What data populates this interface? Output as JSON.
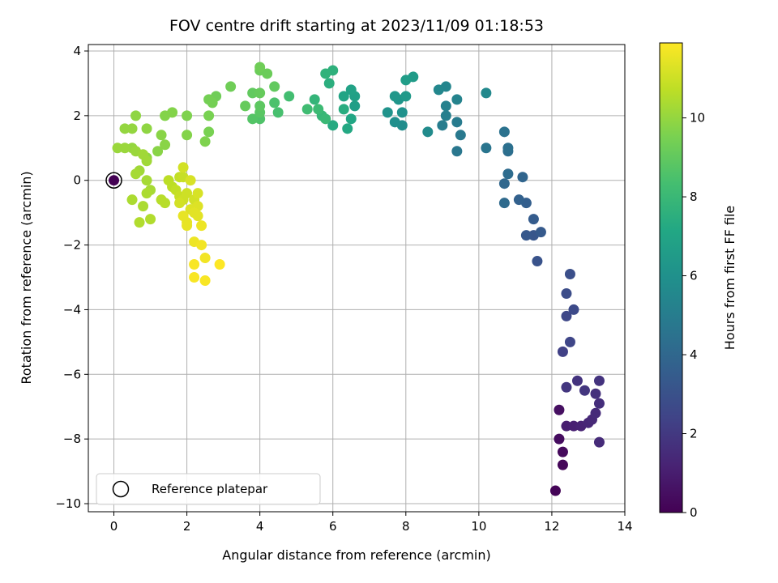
{
  "chart_data": {
    "type": "scatter",
    "title": "FOV centre drift starting at 2023/11/09 01:18:53",
    "xlabel": "Angular distance from reference (arcmin)",
    "ylabel": "Rotation from reference (arcmin)",
    "colorbar_label": "Hours from first FF file",
    "xlim": [
      -0.7,
      14
    ],
    "ylim": [
      -10.25,
      4.2
    ],
    "xticks": [
      0,
      2,
      4,
      6,
      8,
      10,
      12,
      14
    ],
    "yticks": [
      4,
      2,
      0,
      -2,
      -4,
      -6,
      -8,
      -10
    ],
    "colorbar_range": [
      0,
      11.9
    ],
    "colorbar_ticks": [
      0,
      2,
      4,
      6,
      8,
      10
    ],
    "colormap": "viridis",
    "grid": true,
    "legend": {
      "placement": "lower-left",
      "label": "Reference platepar"
    },
    "reference_point": {
      "x": 0,
      "y": 0,
      "hours": 0
    },
    "points": [
      [
        12.1,
        -9.6,
        0.1
      ],
      [
        12.3,
        -8.8,
        0.2
      ],
      [
        12.3,
        -8.4,
        0.3
      ],
      [
        12.2,
        -8.0,
        0.4
      ],
      [
        12.2,
        -7.1,
        0.5
      ],
      [
        12.4,
        -7.6,
        1.0
      ],
      [
        12.6,
        -7.6,
        1.1
      ],
      [
        12.8,
        -7.6,
        1.2
      ],
      [
        13.0,
        -7.5,
        1.3
      ],
      [
        13.1,
        -7.4,
        1.4
      ],
      [
        13.2,
        -7.2,
        1.5
      ],
      [
        13.3,
        -6.9,
        1.6
      ],
      [
        13.2,
        -6.6,
        1.7
      ],
      [
        13.3,
        -6.2,
        1.8
      ],
      [
        12.9,
        -6.5,
        1.9
      ],
      [
        12.7,
        -6.2,
        1.8
      ],
      [
        12.4,
        -6.4,
        1.9
      ],
      [
        13.3,
        -8.1,
        1.5
      ],
      [
        12.3,
        -5.3,
        2.3
      ],
      [
        12.5,
        -5.0,
        2.5
      ],
      [
        12.4,
        -4.2,
        2.6
      ],
      [
        12.6,
        -4.0,
        2.7
      ],
      [
        12.4,
        -3.5,
        2.8
      ],
      [
        12.5,
        -2.9,
        2.9
      ],
      [
        11.6,
        -2.5,
        3.1
      ],
      [
        11.5,
        -1.7,
        3.2
      ],
      [
        11.3,
        -1.7,
        3.3
      ],
      [
        11.7,
        -1.6,
        3.4
      ],
      [
        11.5,
        -1.2,
        3.5
      ],
      [
        11.3,
        -0.7,
        3.6
      ],
      [
        11.1,
        -0.6,
        3.7
      ],
      [
        11.2,
        0.1,
        3.9
      ],
      [
        10.7,
        -0.1,
        4.0
      ],
      [
        10.7,
        -0.7,
        4.1
      ],
      [
        10.8,
        0.2,
        4.2
      ],
      [
        10.8,
        0.9,
        4.3
      ],
      [
        10.8,
        1.0,
        4.4
      ],
      [
        10.7,
        1.5,
        4.5
      ],
      [
        10.2,
        1.0,
        4.6
      ],
      [
        9.4,
        0.9,
        4.7
      ],
      [
        9.5,
        1.4,
        4.8
      ],
      [
        9.4,
        1.8,
        4.9
      ],
      [
        9.0,
        1.7,
        5.0
      ],
      [
        9.1,
        2.0,
        5.1
      ],
      [
        9.1,
        2.3,
        5.2
      ],
      [
        9.4,
        2.5,
        5.3
      ],
      [
        9.1,
        2.9,
        5.4
      ],
      [
        8.9,
        2.8,
        5.5
      ],
      [
        10.2,
        2.7,
        5.6
      ],
      [
        8.6,
        1.5,
        5.7
      ],
      [
        7.9,
        1.7,
        5.8
      ],
      [
        7.7,
        1.8,
        5.9
      ],
      [
        7.9,
        2.1,
        6.0
      ],
      [
        7.5,
        2.1,
        6.1
      ],
      [
        7.8,
        2.5,
        6.2
      ],
      [
        7.7,
        2.6,
        6.3
      ],
      [
        8.0,
        2.6,
        6.4
      ],
      [
        8.2,
        3.2,
        6.5
      ],
      [
        8.0,
        3.1,
        6.6
      ],
      [
        6.6,
        2.3,
        6.7
      ],
      [
        6.6,
        2.6,
        6.8
      ],
      [
        6.5,
        2.8,
        6.9
      ],
      [
        6.3,
        2.6,
        7.0
      ],
      [
        6.5,
        1.9,
        7.1
      ],
      [
        6.4,
        1.6,
        7.2
      ],
      [
        6.0,
        1.7,
        7.3
      ],
      [
        6.3,
        2.2,
        7.4
      ],
      [
        5.9,
        3.0,
        7.5
      ],
      [
        6.0,
        3.4,
        7.6
      ],
      [
        5.8,
        3.3,
        7.7
      ],
      [
        5.5,
        2.5,
        7.8
      ],
      [
        5.7,
        2.0,
        7.9
      ],
      [
        5.8,
        1.9,
        8.0
      ],
      [
        5.6,
        2.2,
        8.1
      ],
      [
        5.3,
        2.2,
        8.2
      ],
      [
        4.8,
        2.6,
        8.3
      ],
      [
        4.5,
        2.1,
        8.4
      ],
      [
        4.4,
        2.4,
        8.5
      ],
      [
        4.0,
        1.9,
        8.6
      ],
      [
        3.8,
        1.9,
        8.7
      ],
      [
        4.0,
        2.1,
        8.8
      ],
      [
        4.0,
        2.3,
        8.9
      ],
      [
        3.8,
        2.7,
        9.0
      ],
      [
        4.4,
        2.9,
        9.0
      ],
      [
        4.0,
        2.7,
        9.1
      ],
      [
        3.6,
        2.3,
        9.1
      ],
      [
        4.0,
        3.4,
        9.2
      ],
      [
        4.2,
        3.3,
        9.2
      ],
      [
        4.0,
        3.5,
        9.3
      ],
      [
        3.2,
        2.9,
        9.3
      ],
      [
        2.8,
        2.6,
        9.3
      ],
      [
        2.6,
        2.5,
        9.4
      ],
      [
        2.7,
        2.4,
        9.4
      ],
      [
        2.6,
        2.0,
        9.5
      ],
      [
        2.6,
        1.5,
        9.5
      ],
      [
        2.5,
        1.2,
        9.6
      ],
      [
        2.0,
        2.0,
        9.6
      ],
      [
        2.0,
        1.4,
        9.7
      ],
      [
        1.6,
        2.1,
        9.7
      ],
      [
        1.4,
        2.0,
        9.7
      ],
      [
        1.3,
        1.4,
        9.8
      ],
      [
        1.4,
        1.1,
        9.8
      ],
      [
        1.2,
        0.9,
        9.8
      ],
      [
        0.9,
        0.7,
        9.9
      ],
      [
        0.9,
        1.6,
        9.9
      ],
      [
        0.6,
        2.0,
        9.9
      ],
      [
        0.5,
        1.6,
        10.0
      ],
      [
        0.3,
        1.6,
        10.0
      ],
      [
        0.5,
        1.0,
        10.0
      ],
      [
        0.3,
        1.0,
        10.1
      ],
      [
        0.1,
        1.0,
        10.1
      ],
      [
        0.6,
        0.9,
        10.1
      ],
      [
        0.8,
        0.8,
        10.2
      ],
      [
        0.9,
        0.6,
        10.2
      ],
      [
        0.7,
        0.3,
        10.2
      ],
      [
        0.6,
        0.2,
        10.3
      ],
      [
        0.9,
        0.0,
        10.3
      ],
      [
        1.0,
        -0.3,
        10.3
      ],
      [
        0.9,
        -0.4,
        10.4
      ],
      [
        0.5,
        -0.6,
        10.4
      ],
      [
        0.8,
        -0.8,
        10.4
      ],
      [
        0.7,
        -1.3,
        10.5
      ],
      [
        1.0,
        -1.2,
        10.5
      ],
      [
        1.3,
        -0.6,
        10.6
      ],
      [
        1.4,
        -0.7,
        10.6
      ],
      [
        1.5,
        0.0,
        10.7
      ],
      [
        1.6,
        -0.2,
        10.7
      ],
      [
        1.7,
        -0.3,
        10.8
      ],
      [
        1.8,
        0.1,
        10.8
      ],
      [
        1.9,
        0.1,
        10.9
      ],
      [
        1.8,
        -0.5,
        10.9
      ],
      [
        1.9,
        -0.6,
        11.0
      ],
      [
        2.0,
        -0.4,
        11.0
      ],
      [
        2.2,
        -0.6,
        11.1
      ],
      [
        1.8,
        -0.7,
        11.1
      ],
      [
        1.9,
        0.4,
        11.1
      ],
      [
        2.1,
        0.0,
        11.2
      ],
      [
        2.3,
        -0.4,
        11.2
      ],
      [
        2.3,
        -0.8,
        11.3
      ],
      [
        2.1,
        -0.9,
        11.3
      ],
      [
        2.2,
        -1.0,
        11.4
      ],
      [
        2.3,
        -1.1,
        11.4
      ],
      [
        1.9,
        -1.1,
        11.5
      ],
      [
        2.0,
        -1.3,
        11.5
      ],
      [
        2.0,
        -1.4,
        11.5
      ],
      [
        2.4,
        -1.4,
        11.6
      ],
      [
        2.2,
        -1.9,
        11.6
      ],
      [
        2.4,
        -2.0,
        11.7
      ],
      [
        2.5,
        -2.4,
        11.7
      ],
      [
        2.2,
        -2.6,
        11.8
      ],
      [
        2.2,
        -3.0,
        11.8
      ],
      [
        2.5,
        -3.1,
        11.8
      ],
      [
        2.9,
        -2.6,
        11.9
      ]
    ]
  }
}
